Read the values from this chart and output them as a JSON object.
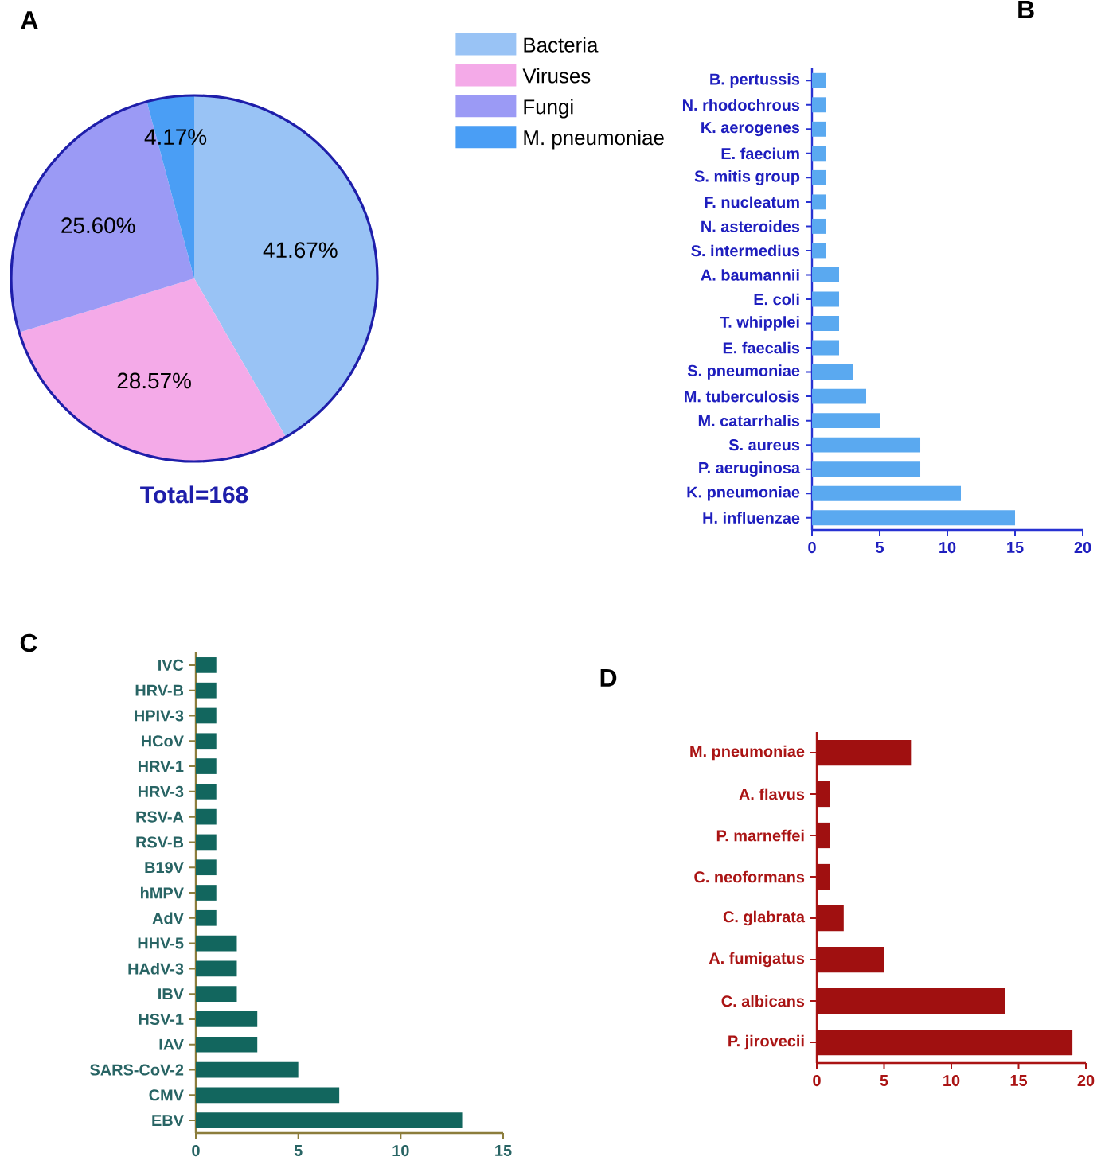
{
  "chart_data": [
    {
      "type": "pie",
      "title": "A",
      "categories": [
        "Bacteria",
        "Viruses",
        "Fungi",
        "M. pneumoniae"
      ],
      "values": [
        41.67,
        28.57,
        25.6,
        4.17
      ],
      "colors": [
        "#99c3f5",
        "#f4aae8",
        "#9b9af5",
        "#4a9ef5"
      ],
      "value_labels": [
        "41.67%",
        "28.57%",
        "25.60%",
        "4.17%"
      ],
      "legend": "right",
      "annotations": [
        "Total=168"
      ]
    },
    {
      "type": "bar",
      "title": "B",
      "orientation": "horizontal",
      "categories": [
        "B. pertussis",
        "N. rhodochrous",
        "K. aerogenes",
        "E. faecium",
        "S. mitis group",
        "F. nucleatum",
        "N. asteroides",
        "S. intermedius",
        "A. baumannii",
        "E. coli",
        "T. whipplei",
        "E. faecalis",
        "S. pneumoniae",
        "M. tuberculosis",
        "M. catarrhalis",
        "S. aureus",
        "P. aeruginosa",
        "K. pneumoniae",
        "H. influenzae"
      ],
      "values": [
        1,
        1,
        1,
        1,
        1,
        1,
        1,
        1,
        2,
        2,
        2,
        2,
        3,
        4,
        5,
        8,
        8,
        11,
        15
      ],
      "color": "#5aa9f0",
      "xlim": [
        0,
        20
      ],
      "xticks": [
        0,
        5,
        10,
        15,
        20
      ]
    },
    {
      "type": "bar",
      "title": "C",
      "orientation": "horizontal",
      "categories": [
        "IVC",
        "HRV-B",
        "HPIV-3",
        "HCoV",
        "HRV-1",
        "HRV-3",
        "RSV-A",
        "RSV-B",
        "B19V",
        "hMPV",
        "AdV",
        "HHV-5",
        "HAdV-3",
        "IBV",
        "HSV-1",
        "IAV",
        "SARS-CoV-2",
        "CMV",
        "EBV"
      ],
      "values": [
        1,
        1,
        1,
        1,
        1,
        1,
        1,
        1,
        1,
        1,
        1,
        2,
        2,
        2,
        3,
        3,
        5,
        7,
        13
      ],
      "color": "#12665e",
      "xlim": [
        0,
        15
      ],
      "xticks": [
        0,
        5,
        10,
        15
      ]
    },
    {
      "type": "bar",
      "title": "D",
      "orientation": "horizontal",
      "categories": [
        "M. pneumoniae",
        "A. flavus",
        "P. marneffei",
        "C. neoformans",
        "C. glabrata",
        "A. fumigatus",
        "C. albicans",
        "P. jirovecii"
      ],
      "values": [
        7,
        1,
        1,
        1,
        2,
        5,
        14,
        19
      ],
      "color": "#a01010",
      "xlim": [
        0,
        20
      ],
      "xticks": [
        0,
        5,
        10,
        15,
        20
      ]
    }
  ]
}
